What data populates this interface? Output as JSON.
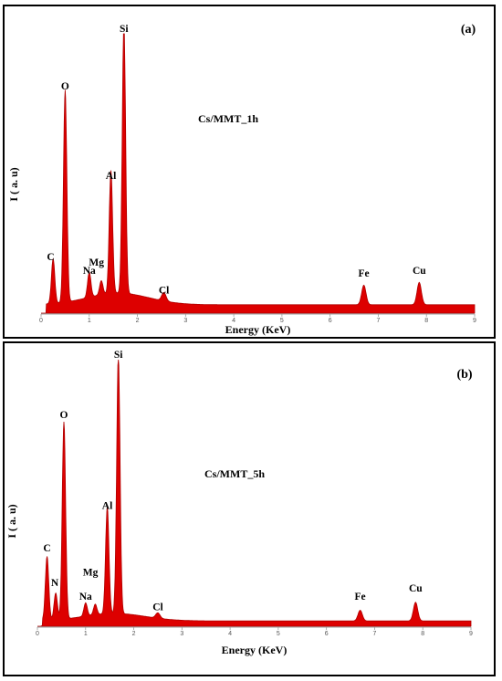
{
  "chart_data": [
    {
      "type": "line",
      "panel_label": "(a)",
      "sample": "Cs/MMT_1h",
      "xlabel": "Energy (KeV)",
      "ylabel": "I ( a. u)",
      "x_ticks": [
        "0",
        "1",
        "2",
        "3",
        "4",
        "5",
        "6",
        "7",
        "8",
        "9"
      ],
      "xlim": [
        0,
        9
      ],
      "ylim": [
        0,
        100
      ],
      "color": "#dd0000",
      "baseline": 3,
      "peaks": [
        {
          "element": "C",
          "x": 0.25,
          "y": 16,
          "label_dx": -0.05,
          "label_dy": 3
        },
        {
          "element": "O",
          "x": 0.5,
          "y": 76,
          "label_dx": 0.0,
          "label_dy": 4
        },
        {
          "element": "Na",
          "x": 1.0,
          "y": 9,
          "label_dx": 0.0,
          "label_dy": 5
        },
        {
          "element": "Mg",
          "x": 1.25,
          "y": 5,
          "label_dx": -0.1,
          "label_dy": 12
        },
        {
          "element": "Al",
          "x": 1.45,
          "y": 44,
          "label_dx": 0.0,
          "label_dy": 4
        },
        {
          "element": "Si",
          "x": 1.72,
          "y": 97,
          "label_dx": 0.0,
          "label_dy": 4
        },
        {
          "element": "Cl",
          "x": 2.55,
          "y": 3,
          "label_dx": 0.0,
          "label_dy": 4
        },
        {
          "element": "Fe",
          "x": 6.7,
          "y": 7,
          "label_dx": 0.0,
          "label_dy": 6
        },
        {
          "element": "Cu",
          "x": 7.85,
          "y": 8,
          "label_dx": 0.0,
          "label_dy": 6
        }
      ]
    },
    {
      "type": "line",
      "panel_label": "(b)",
      "sample": "Cs/MMT_5h",
      "xlabel": "Energy (KeV)",
      "ylabel": "I ( a. u)",
      "x_ticks": [
        "0",
        "1",
        "2",
        "3",
        "4",
        "5",
        "6",
        "7",
        "8",
        "9"
      ],
      "xlim": [
        0,
        9
      ],
      "ylim": [
        0,
        100
      ],
      "color": "#dd0000",
      "baseline": 2,
      "peaks": [
        {
          "element": "C",
          "x": 0.2,
          "y": 24,
          "label_dx": 0.0,
          "label_dy": 4
        },
        {
          "element": "N",
          "x": 0.38,
          "y": 10,
          "label_dx": -0.02,
          "label_dy": 5
        },
        {
          "element": "O",
          "x": 0.55,
          "y": 74,
          "label_dx": 0.0,
          "label_dy": 4
        },
        {
          "element": "Na",
          "x": 1.0,
          "y": 5,
          "label_dx": 0.0,
          "label_dy": 5
        },
        {
          "element": "Mg",
          "x": 1.2,
          "y": 4,
          "label_dx": -0.1,
          "label_dy": 15
        },
        {
          "element": "Al",
          "x": 1.45,
          "y": 40,
          "label_dx": 0.0,
          "label_dy": 4
        },
        {
          "element": "Si",
          "x": 1.68,
          "y": 97,
          "label_dx": 0.0,
          "label_dy": 4
        },
        {
          "element": "Cl",
          "x": 2.5,
          "y": 2,
          "label_dx": 0.0,
          "label_dy": 4
        },
        {
          "element": "Fe",
          "x": 6.7,
          "y": 4,
          "label_dx": 0.0,
          "label_dy": 6
        },
        {
          "element": "Cu",
          "x": 7.85,
          "y": 7,
          "label_dx": 0.0,
          "label_dy": 6
        }
      ]
    }
  ]
}
